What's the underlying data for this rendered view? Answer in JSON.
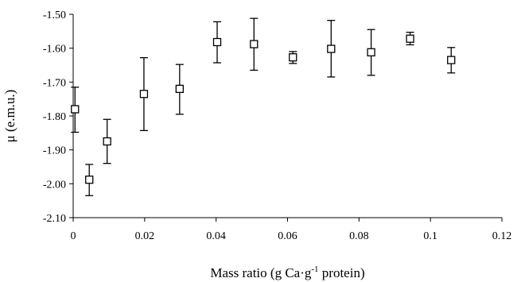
{
  "chart_data": {
    "type": "scatter",
    "xlabel": "Mass ratio (g Ca·g",
    "xlabel_sup": "-1",
    "xlabel_suffix": " protein)",
    "ylabel": "μ (e.m.u.)",
    "xlim": [
      0,
      0.12
    ],
    "ylim": [
      -2.1,
      -1.5
    ],
    "x_ticks": [
      "0",
      "0.02",
      "0.04",
      "0.06",
      "0.08",
      "0.1",
      "0.12"
    ],
    "x_tick_values": [
      0,
      0.02,
      0.04,
      0.06,
      0.08,
      0.1,
      0.12
    ],
    "y_ticks": [
      "-1.50",
      "-1.60",
      "-1.70",
      "-1.80",
      "-1.90",
      "-2.00",
      "-2.10"
    ],
    "y_tick_values": [
      -1.5,
      -1.6,
      -1.7,
      -1.8,
      -1.9,
      -2.0,
      -2.1
    ],
    "points": [
      {
        "x": 0.0005,
        "y": -1.78,
        "err_low": -1.848,
        "err_high": -1.715
      },
      {
        "x": 0.0045,
        "y": -1.988,
        "err_low": -2.035,
        "err_high": -1.943
      },
      {
        "x": 0.0095,
        "y": -1.875,
        "err_low": -1.94,
        "err_high": -1.81
      },
      {
        "x": 0.0198,
        "y": -1.735,
        "err_low": -1.843,
        "err_high": -1.628
      },
      {
        "x": 0.0298,
        "y": -1.72,
        "err_low": -1.795,
        "err_high": -1.648
      },
      {
        "x": 0.0403,
        "y": -1.582,
        "err_low": -1.643,
        "err_high": -1.522
      },
      {
        "x": 0.0506,
        "y": -1.588,
        "err_low": -1.665,
        "err_high": -1.512
      },
      {
        "x": 0.0615,
        "y": -1.627,
        "err_low": -1.645,
        "err_high": -1.61
      },
      {
        "x": 0.0722,
        "y": -1.602,
        "err_low": -1.685,
        "err_high": -1.518
      },
      {
        "x": 0.0834,
        "y": -1.612,
        "err_low": -1.68,
        "err_high": -1.545
      },
      {
        "x": 0.0943,
        "y": -1.572,
        "err_low": -1.59,
        "err_high": -1.553
      },
      {
        "x": 0.1058,
        "y": -1.635,
        "err_low": -1.673,
        "err_high": -1.598
      }
    ],
    "grid": false,
    "legend": "none"
  }
}
